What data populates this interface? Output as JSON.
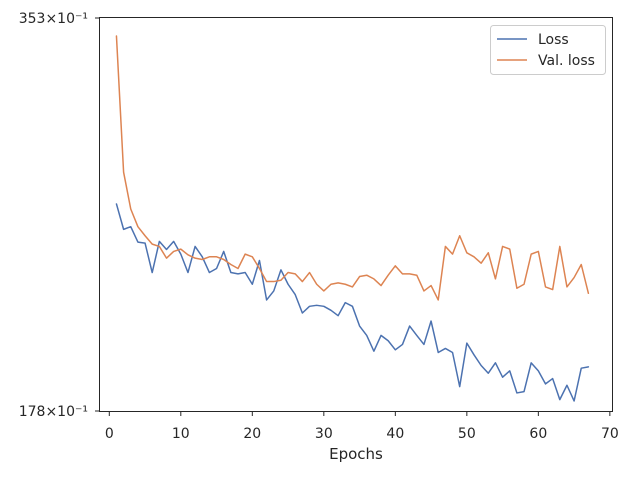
{
  "chart_data": {
    "type": "line",
    "xlabel": "Epochs",
    "ylabel": "",
    "xlim": [
      -1.3,
      70.3
    ],
    "ylim": [
      0.3178,
      0.4353
    ],
    "x_ticks": [
      0,
      10,
      20,
      30,
      40,
      50,
      60,
      70
    ],
    "x_tick_labels": [
      "0",
      "10",
      "20",
      "30",
      "40",
      "50",
      "60",
      "70"
    ],
    "y_tick_labels": [
      "0.4353×10⁻¹",
      "0.3178×10⁻¹"
    ],
    "y_tick_labels_visible": [
      "353×10⁻¹",
      "178×10⁻¹"
    ],
    "y_tick_values": [
      0.4353,
      0.3178
    ],
    "legend_position": "top-right",
    "grid": false,
    "series": [
      {
        "name": "Loss",
        "color": "#4c72b0",
        "x": [
          1,
          2,
          3,
          4,
          5,
          6,
          7,
          8,
          9,
          10,
          11,
          12,
          13,
          14,
          15,
          16,
          17,
          18,
          19,
          20,
          21,
          22,
          23,
          24,
          25,
          26,
          27,
          28,
          29,
          30,
          31,
          32,
          33,
          34,
          35,
          36,
          37,
          38,
          39,
          40,
          41,
          42,
          43,
          44,
          45,
          46,
          47,
          48,
          49,
          50,
          51,
          52,
          53,
          54,
          55,
          56,
          57,
          58,
          59,
          60,
          61,
          62,
          63,
          64,
          65,
          66,
          67
        ],
        "values": [
          0.3797,
          0.3721,
          0.3729,
          0.3683,
          0.368,
          0.3592,
          0.3685,
          0.3661,
          0.3685,
          0.3647,
          0.3592,
          0.367,
          0.3639,
          0.3592,
          0.3604,
          0.3655,
          0.3592,
          0.3588,
          0.3592,
          0.3557,
          0.3628,
          0.351,
          0.3537,
          0.36,
          0.3557,
          0.3526,
          0.3471,
          0.3491,
          0.3494,
          0.3491,
          0.3479,
          0.3463,
          0.3502,
          0.3491,
          0.3432,
          0.3404,
          0.3357,
          0.3404,
          0.3388,
          0.3361,
          0.3377,
          0.3432,
          0.3404,
          0.3377,
          0.3447,
          0.3353,
          0.3365,
          0.3353,
          0.3251,
          0.3381,
          0.3346,
          0.3314,
          0.3291,
          0.3322,
          0.3279,
          0.3298,
          0.3232,
          0.3236,
          0.3322,
          0.3298,
          0.3259,
          0.3275,
          0.3212,
          0.3255,
          0.3208,
          0.3306,
          0.331
        ]
      },
      {
        "name": "Val. loss",
        "color": "#dd8452",
        "x": [
          1,
          2,
          3,
          4,
          5,
          6,
          7,
          8,
          9,
          10,
          11,
          12,
          13,
          14,
          15,
          16,
          17,
          18,
          19,
          20,
          21,
          22,
          23,
          24,
          25,
          26,
          27,
          28,
          29,
          30,
          31,
          32,
          33,
          34,
          35,
          36,
          37,
          38,
          39,
          40,
          41,
          42,
          43,
          44,
          45,
          46,
          47,
          48,
          49,
          50,
          51,
          52,
          53,
          54,
          55,
          56,
          57,
          58,
          59,
          60,
          61,
          62,
          63,
          64,
          65,
          66,
          67
        ],
        "values": [
          0.4299,
          0.3892,
          0.3782,
          0.3729,
          0.3702,
          0.3677,
          0.367,
          0.3635,
          0.3655,
          0.3662,
          0.3645,
          0.3635,
          0.3631,
          0.3639,
          0.3639,
          0.3631,
          0.3616,
          0.3604,
          0.3647,
          0.3639,
          0.3604,
          0.3565,
          0.3565,
          0.3569,
          0.3592,
          0.3588,
          0.3565,
          0.3592,
          0.3557,
          0.3537,
          0.3557,
          0.3561,
          0.3557,
          0.3549,
          0.358,
          0.3584,
          0.3573,
          0.3553,
          0.3584,
          0.3612,
          0.3588,
          0.3588,
          0.3584,
          0.3537,
          0.3553,
          0.351,
          0.367,
          0.3647,
          0.3702,
          0.3651,
          0.3639,
          0.362,
          0.3651,
          0.3573,
          0.367,
          0.3662,
          0.3545,
          0.3557,
          0.3647,
          0.3655,
          0.3549,
          0.3541,
          0.367,
          0.3549,
          0.3577,
          0.3616,
          0.353
        ]
      }
    ]
  }
}
